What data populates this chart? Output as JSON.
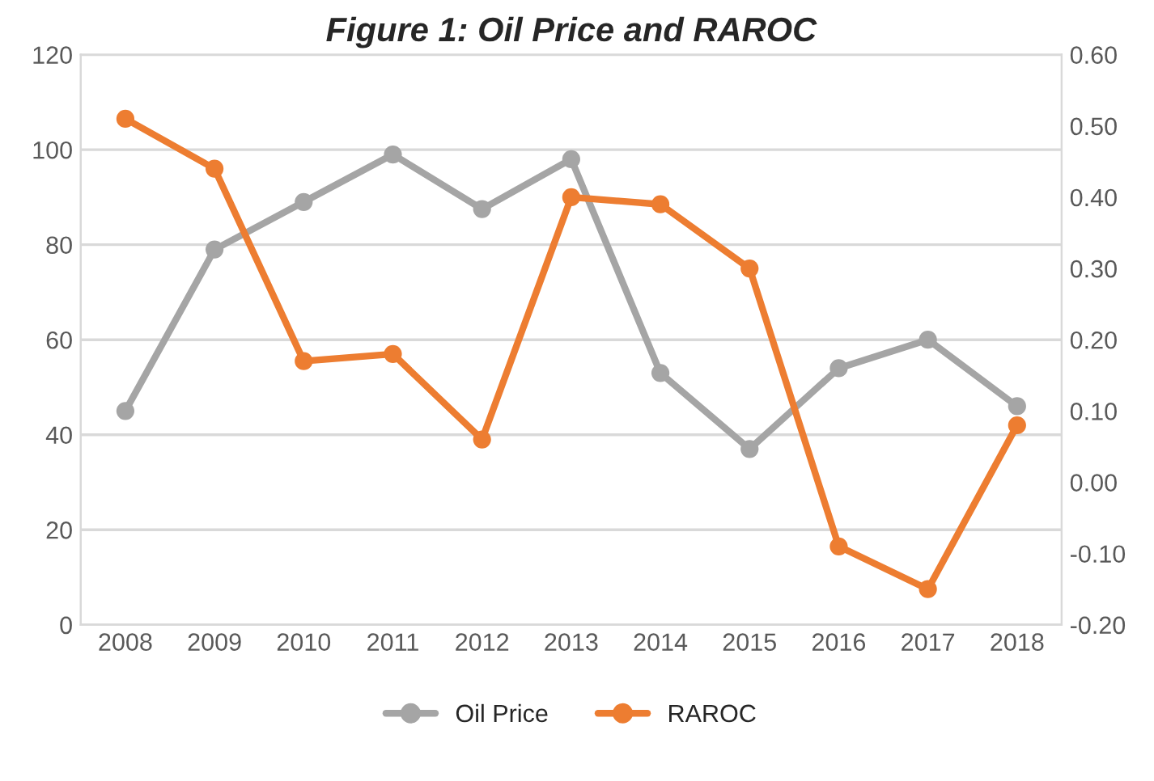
{
  "chart_data": {
    "type": "line",
    "title": "Figure 1: Oil Price and RAROC",
    "categories": [
      "2008",
      "2009",
      "2010",
      "2011",
      "2012",
      "2013",
      "2014",
      "2015",
      "2016",
      "2017",
      "2018"
    ],
    "series": [
      {
        "name": "Oil Price",
        "color": "#a5a5a5",
        "values": [
          45,
          79,
          89,
          99,
          87.5,
          98,
          53,
          37,
          54,
          60,
          46
        ]
      },
      {
        "name": "RAROC",
        "color": "#ed7d31",
        "axis": "y2",
        "values": [
          0.51,
          0.44,
          0.17,
          0.18,
          0.06,
          0.4,
          0.39,
          0.3,
          -0.09,
          -0.15,
          0.08
        ]
      }
    ],
    "ylim": [
      0,
      120
    ],
    "yticks": [
      0,
      20,
      40,
      60,
      80,
      100,
      120
    ],
    "y2lim": [
      -0.2,
      0.6
    ],
    "y2ticks": [
      {
        "value": -0.2,
        "label": "-0.20"
      },
      {
        "value": -0.1,
        "label": "-0.10"
      },
      {
        "value": 0,
        "label": "0.00"
      },
      {
        "value": 0.1,
        "label": "0.10"
      },
      {
        "value": 0.2,
        "label": "0.20"
      },
      {
        "value": 0.3,
        "label": "0.30"
      },
      {
        "value": 0.4,
        "label": "0.40"
      },
      {
        "value": 0.5,
        "label": "0.50"
      },
      {
        "value": 0.6,
        "label": "0.60"
      }
    ],
    "grid": "y",
    "legend": "bottom",
    "marker": "circle",
    "line_style": "solid"
  }
}
